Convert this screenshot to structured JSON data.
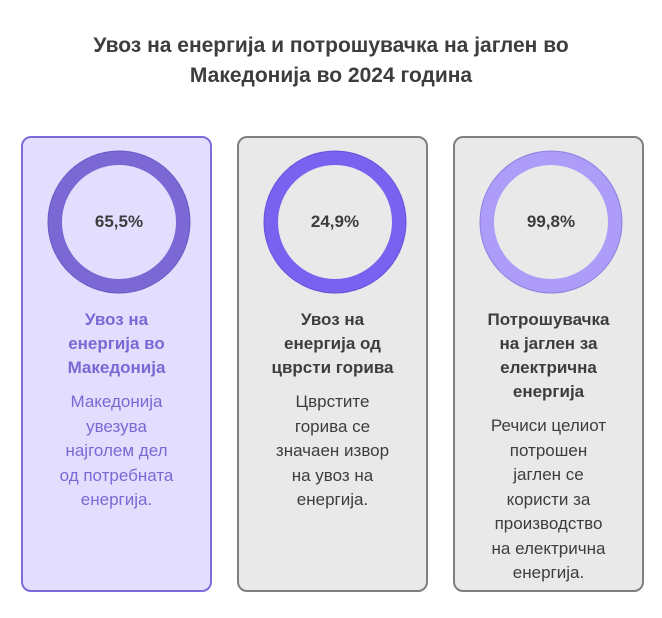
{
  "title": [
    "Увоз на енергија и потрошувачка на јаглен во",
    "Македонија во 2024 година"
  ],
  "cards": [
    {
      "value": "65,5%",
      "percent": 65.5,
      "heading": [
        "Увоз на",
        "енергија во",
        "Македонија"
      ],
      "desc": [
        "Македонија",
        "увезува",
        "најголем дел",
        "од потребната",
        "енергија."
      ],
      "ring_color": "#7b68d4",
      "text_color": "#7b68d4"
    },
    {
      "value": "24,9%",
      "percent": 24.9,
      "heading": [
        "Увоз на",
        "енергија од",
        "цврсти горива"
      ],
      "desc": [
        "Цврстите",
        "горива се",
        "значаен извор",
        "на увоз на",
        "енергија."
      ],
      "ring_color": "#7a62f0",
      "text_color": "#3d3d3d"
    },
    {
      "value": "99,8%",
      "percent": 99.8,
      "heading": [
        "Потрошувачка",
        "на јаглен за",
        "електрична",
        "енергија"
      ],
      "desc": [
        "Речиси целиот",
        "потрошен",
        "јаглен се",
        "користи за",
        "производство",
        "на електрична",
        "енергија."
      ],
      "ring_color": "#ad9cf8",
      "text_color": "#3d3d3d"
    }
  ]
}
